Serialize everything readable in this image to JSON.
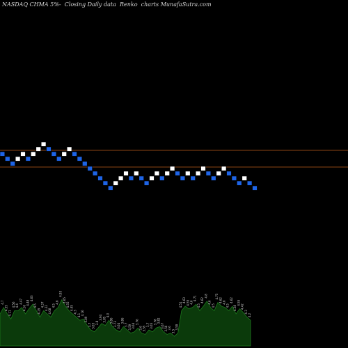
{
  "header": {
    "title": "NASDAQ CHMA 5%-  Closing Daily data  Renko  charts MunafaSutra.com"
  },
  "colors": {
    "background": "#000000",
    "up_brick": "#ffffff",
    "down_brick": "#1e64e6",
    "brick_border": "#000000",
    "reference_line": "#8b4513",
    "volume_fill": "#0b3a0b",
    "volume_stroke": "#1d7a1d",
    "volume_label": "#d0d0d0"
  },
  "chart_data": {
    "type": "renko",
    "box_size": "5%",
    "reference_lines": [
      "upper",
      "lower"
    ],
    "bricks": [
      {
        "dir": "down",
        "level": 0
      },
      {
        "dir": "down",
        "level": -1
      },
      {
        "dir": "down",
        "level": -2
      },
      {
        "dir": "up",
        "level": -1
      },
      {
        "dir": "up",
        "level": 0
      },
      {
        "dir": "down",
        "level": -1
      },
      {
        "dir": "up",
        "level": 0
      },
      {
        "dir": "up",
        "level": 1
      },
      {
        "dir": "up",
        "level": 2
      },
      {
        "dir": "down",
        "level": 1
      },
      {
        "dir": "down",
        "level": 0
      },
      {
        "dir": "down",
        "level": -1
      },
      {
        "dir": "up",
        "level": 0
      },
      {
        "dir": "up",
        "level": 1
      },
      {
        "dir": "down",
        "level": 0
      },
      {
        "dir": "down",
        "level": -1
      },
      {
        "dir": "down",
        "level": -2
      },
      {
        "dir": "down",
        "level": -3
      },
      {
        "dir": "down",
        "level": -4
      },
      {
        "dir": "down",
        "level": -5
      },
      {
        "dir": "down",
        "level": -6
      },
      {
        "dir": "down",
        "level": -7
      },
      {
        "dir": "up",
        "level": -6
      },
      {
        "dir": "up",
        "level": -5
      },
      {
        "dir": "up",
        "level": -4
      },
      {
        "dir": "down",
        "level": -5
      },
      {
        "dir": "up",
        "level": -4
      },
      {
        "dir": "down",
        "level": -5
      },
      {
        "dir": "down",
        "level": -6
      },
      {
        "dir": "up",
        "level": -5
      },
      {
        "dir": "up",
        "level": -4
      },
      {
        "dir": "down",
        "level": -5
      },
      {
        "dir": "up",
        "level": -4
      },
      {
        "dir": "up",
        "level": -3
      },
      {
        "dir": "down",
        "level": -4
      },
      {
        "dir": "down",
        "level": -5
      },
      {
        "dir": "up",
        "level": -4
      },
      {
        "dir": "down",
        "level": -5
      },
      {
        "dir": "up",
        "level": -4
      },
      {
        "dir": "up",
        "level": -3
      },
      {
        "dir": "down",
        "level": -4
      },
      {
        "dir": "down",
        "level": -5
      },
      {
        "dir": "up",
        "level": -4
      },
      {
        "dir": "up",
        "level": -3
      },
      {
        "dir": "down",
        "level": -4
      },
      {
        "dir": "down",
        "level": -5
      },
      {
        "dir": "down",
        "level": -6
      },
      {
        "dir": "up",
        "level": -5
      },
      {
        "dir": "down",
        "level": -6
      },
      {
        "dir": "down",
        "level": -7
      }
    ],
    "volume": [
      0.5,
      0.6,
      0.5,
      0.42,
      0.55,
      0.55,
      0.6,
      0.5,
      0.58,
      0.65,
      0.55,
      0.45,
      0.55,
      0.5,
      0.45,
      0.55,
      0.6,
      0.72,
      0.62,
      0.55,
      0.5,
      0.45,
      0.4,
      0.42,
      0.32,
      0.25,
      0.22,
      0.28,
      0.35,
      0.32,
      0.4,
      0.3,
      0.25,
      0.22,
      0.3,
      0.25,
      0.2,
      0.22,
      0.28,
      0.2,
      0.18,
      0.25,
      0.22,
      0.28,
      0.3,
      0.22,
      0.18,
      0.2,
      0.15,
      0.2,
      0.55,
      0.62,
      0.58,
      0.6,
      0.65,
      0.55,
      0.62,
      0.7,
      0.6,
      0.55,
      0.68,
      0.62,
      0.6,
      0.55,
      0.62,
      0.5,
      0.58,
      0.52,
      0.45,
      0.4
    ],
    "volume_labels": [
      "4.65",
      "4.7",
      "4.35",
      "4.11",
      "4.56",
      "4.4",
      "4.47",
      "4.16",
      "4.48",
      "4.63",
      "4.5",
      "4.29",
      "4.37",
      "4.22",
      "4.08",
      "4.5",
      "4.6",
      "4.93",
      "4.65",
      "4.55",
      "4.45",
      "4.3",
      "4.1",
      "4.16",
      "3.89",
      "3.7",
      "3.63",
      "3.8",
      "3.94",
      "3.85",
      "4.0",
      "3.86",
      "3.73",
      "3.64",
      "3.86",
      "3.7",
      "3.59",
      "3.64",
      "3.76",
      "3.6",
      "3.55",
      "3.7",
      "3.65",
      "3.78",
      "3.82",
      "3.67",
      "3.56",
      "3.6",
      "3.5",
      "3.59",
      "4.51",
      "4.63",
      "4.55",
      "4.6",
      "4.71",
      "4.5",
      "4.62",
      "4.8",
      "4.6",
      "4.5",
      "4.75",
      "4.62",
      "4.6",
      "4.5",
      "4.62",
      "4.38",
      "4.55",
      "4.42",
      "4.3",
      "4.2"
    ]
  }
}
